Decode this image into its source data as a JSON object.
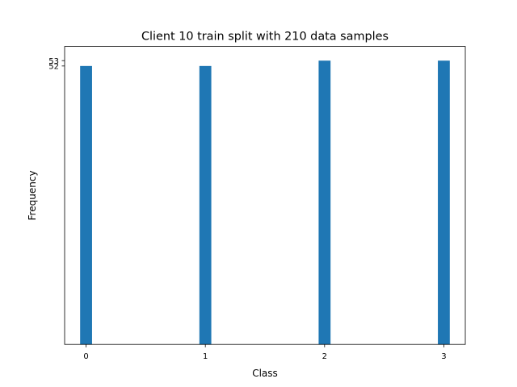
{
  "chart_data": {
    "type": "bar",
    "title": "Client 10 train split with 210 data samples",
    "xlabel": "Class",
    "ylabel": "Frequency",
    "categories": [
      "0",
      "1",
      "2",
      "3"
    ],
    "x": [
      0,
      1,
      2,
      3
    ],
    "values": [
      52,
      52,
      53,
      53
    ],
    "yticks": [
      52,
      53
    ],
    "ytick_labels": [
      "52",
      "53"
    ],
    "xticks": [
      0,
      1,
      2,
      3
    ],
    "xtick_labels": [
      "0",
      "1",
      "2",
      "3"
    ],
    "ylim": [
      0,
      55.65
    ],
    "xlim": [
      -0.18,
      3.18
    ],
    "grid": false,
    "bar_color": "#1f77b4"
  }
}
